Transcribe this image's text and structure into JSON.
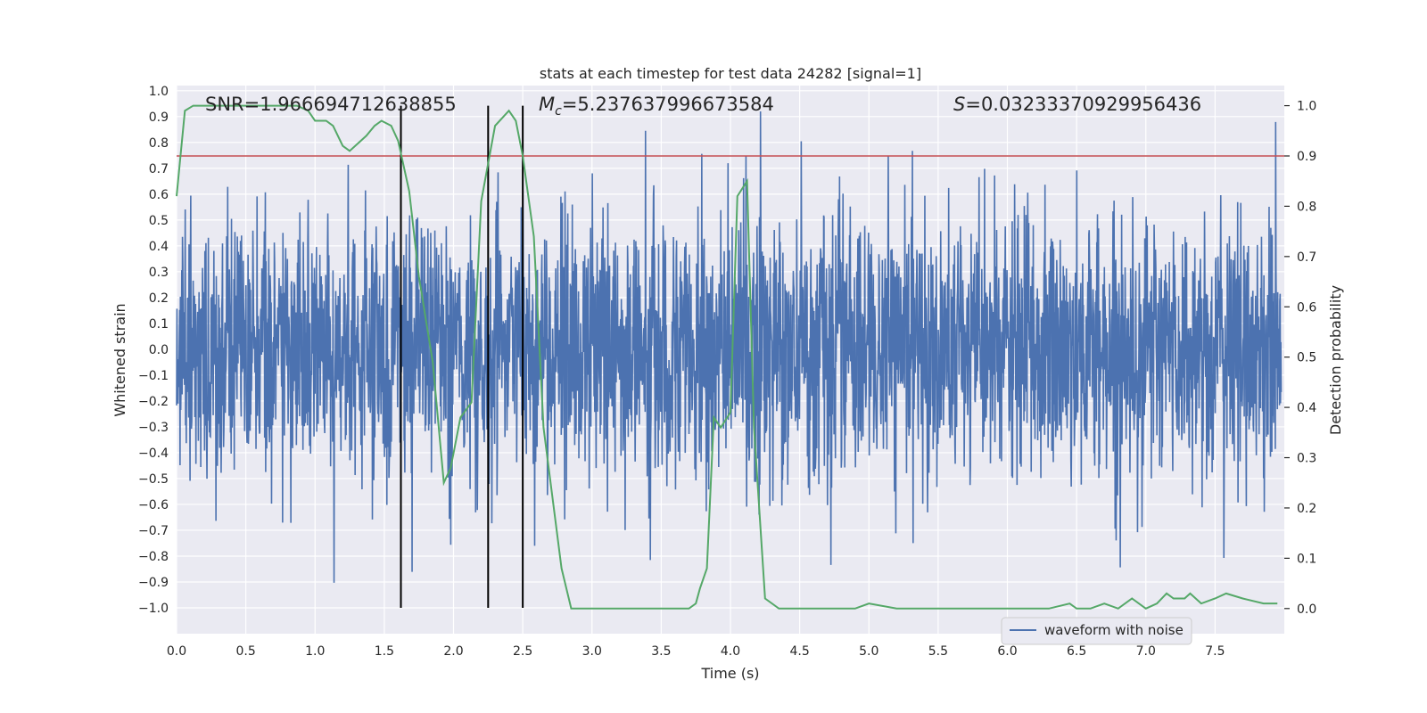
{
  "chart_data": {
    "type": "line",
    "title": "stats at each timestep for test data 24282 [signal=1]",
    "xlabel": "Time (s)",
    "ylabel": "Whitened strain",
    "y2label": "Detection probability",
    "xlim": [
      0.0,
      8.0
    ],
    "ylim": [
      -1.1,
      1.02
    ],
    "y2lim": [
      -0.05,
      1.04
    ],
    "xticks": [
      "0.0",
      "0.5",
      "1.0",
      "1.5",
      "2.0",
      "2.5",
      "3.0",
      "3.5",
      "4.0",
      "4.5",
      "5.0",
      "5.5",
      "6.0",
      "6.5",
      "7.0",
      "7.5"
    ],
    "yticks": [
      "1.0",
      "0.9",
      "0.8",
      "0.7",
      "0.6",
      "0.5",
      "0.4",
      "0.3",
      "0.2",
      "0.1",
      "0.0",
      "−0.1",
      "−0.2",
      "−0.3",
      "−0.4",
      "−0.5",
      "−0.6",
      "−0.7",
      "−0.8",
      "−0.9",
      "−1.0"
    ],
    "y2ticks": [
      "0.0",
      "0.1",
      "0.2",
      "0.3",
      "0.4",
      "0.5",
      "0.6",
      "0.7",
      "0.8",
      "0.9",
      "1.0"
    ],
    "annotations": {
      "snr": "SNR=1.966694712638855",
      "mc_symbol": "M",
      "mc_sub": "c",
      "mc_value": "=5.237637996673584",
      "s_symbol": "S",
      "s_value": "=0.03233370929956436"
    },
    "threshold": 0.9,
    "vertical_lines": [
      1.62,
      2.25,
      2.5
    ],
    "legend": {
      "label": "waveform with noise",
      "placement": "lower-right"
    },
    "series": [
      {
        "name": "waveform with noise",
        "axis": "left",
        "color": "#4c72b0",
        "description": "whitened strain noise, roughly between -1.0 and 0.9"
      },
      {
        "name": "detection probability",
        "axis": "right",
        "color": "#55a868",
        "x": [
          0.0,
          0.06,
          0.12,
          0.3,
          0.5,
          0.7,
          0.87,
          0.95,
          1.0,
          1.08,
          1.13,
          1.2,
          1.25,
          1.37,
          1.43,
          1.48,
          1.55,
          1.6,
          1.68,
          1.75,
          1.85,
          1.93,
          1.98,
          2.05,
          2.13,
          2.2,
          2.3,
          2.4,
          2.45,
          2.5,
          2.58,
          2.65,
          2.78,
          2.85,
          3.0,
          3.2,
          3.45,
          3.7,
          3.75,
          3.78,
          3.83,
          3.88,
          3.93,
          4.0,
          4.05,
          4.12,
          4.17,
          4.25,
          4.35,
          4.5,
          4.7,
          4.9,
          5.0,
          5.2,
          5.35,
          5.5,
          5.7,
          5.9,
          6.1,
          6.3,
          6.45,
          6.5,
          6.6,
          6.7,
          6.8,
          6.9,
          7.0,
          7.08,
          7.15,
          7.2,
          7.28,
          7.32,
          7.4,
          7.5,
          7.58,
          7.7,
          7.85,
          7.95
        ],
        "y": [
          0.82,
          0.99,
          1.0,
          1.0,
          1.0,
          1.0,
          1.0,
          0.99,
          0.97,
          0.97,
          0.96,
          0.92,
          0.91,
          0.94,
          0.96,
          0.97,
          0.96,
          0.93,
          0.83,
          0.66,
          0.49,
          0.25,
          0.28,
          0.38,
          0.41,
          0.81,
          0.96,
          0.99,
          0.97,
          0.9,
          0.74,
          0.36,
          0.08,
          0.0,
          0.0,
          0.0,
          0.0,
          0.0,
          0.01,
          0.04,
          0.08,
          0.38,
          0.36,
          0.39,
          0.82,
          0.85,
          0.36,
          0.02,
          0.0,
          0.0,
          0.0,
          0.0,
          0.01,
          0.0,
          0.0,
          0.0,
          0.0,
          0.0,
          0.0,
          0.0,
          0.01,
          0.0,
          0.0,
          0.01,
          0.0,
          0.02,
          0.0,
          0.01,
          0.03,
          0.02,
          0.02,
          0.03,
          0.01,
          0.02,
          0.03,
          0.02,
          0.01,
          0.01
        ]
      }
    ]
  }
}
